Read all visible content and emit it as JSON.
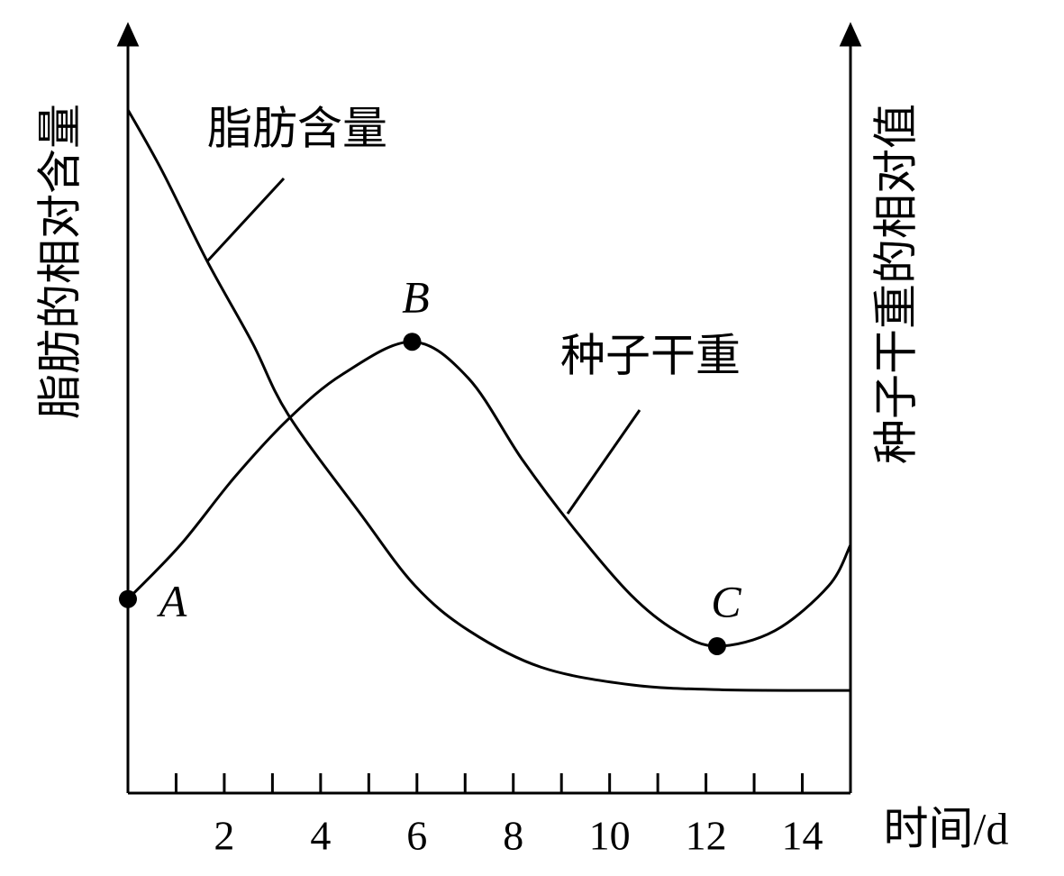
{
  "chart_data": {
    "type": "line",
    "x_label": "时间/d",
    "y_label": "脂肪的相对含量",
    "y2_label": "种子干重的相对值",
    "xlim": [
      0,
      15
    ],
    "xticks": [
      2,
      4,
      6,
      8,
      10,
      12,
      14
    ],
    "x_minor_ticks": [
      1,
      3,
      5,
      7,
      9,
      11,
      13,
      15
    ],
    "ylim": [
      0,
      1
    ],
    "y2lim": [
      0,
      1
    ],
    "series": [
      {
        "name": "脂肪含量",
        "color": "#000000",
        "x": [
          0,
          0.71,
          1.65,
          2.58,
          3.33,
          4.83,
          5.96,
          7.08,
          8.58,
          10.45,
          12.32,
          15
        ],
        "values": [
          0.972,
          0.885,
          0.756,
          0.641,
          0.538,
          0.397,
          0.295,
          0.231,
          0.179,
          0.154,
          0.147,
          0.146
        ]
      },
      {
        "name": "种子干重",
        "color": "#000000",
        "axis": "y2",
        "x": [
          0,
          1.09,
          2.21,
          3.33,
          4.46,
          5.9,
          7.07,
          8.19,
          9.31,
          10.44,
          11.37,
          12.23,
          13.43,
          14.55,
          15
        ],
        "values": [
          0.276,
          0.353,
          0.449,
          0.532,
          0.596,
          0.642,
          0.59,
          0.474,
          0.372,
          0.282,
          0.231,
          0.209,
          0.231,
          0.295,
          0.353
        ]
      }
    ],
    "points": [
      {
        "label": "A",
        "x": 0,
        "y": 0.276
      },
      {
        "label": "B",
        "x": 5.9,
        "y": 0.642
      },
      {
        "label": "C",
        "x": 12.23,
        "y": 0.209
      }
    ]
  }
}
